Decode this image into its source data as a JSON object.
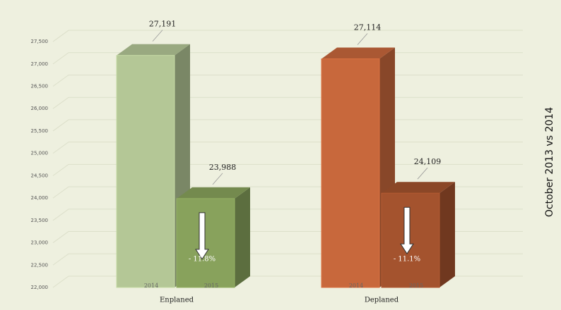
{
  "chart_data": {
    "type": "bar3d",
    "side_title": "October 2013 vs 2014",
    "categories": [
      "Enplaned",
      "Deplaned"
    ],
    "series": [
      {
        "name": "2014",
        "values": [
          27191,
          27114
        ],
        "value_labels": [
          "27,191",
          "27,114"
        ],
        "colors": [
          "#b4c796",
          "#c8683c"
        ]
      },
      {
        "name": "2015",
        "values": [
          23988,
          24109
        ],
        "value_labels": [
          "23,988",
          "24,109"
        ],
        "colors": [
          "#88a25c",
          "#a4532e"
        ],
        "annotations": [
          "- 11.8%",
          "- 11.1%"
        ]
      }
    ],
    "ylim": [
      22000,
      27800
    ],
    "yticks": [
      {
        "value": 22000,
        "label": "22,000"
      },
      {
        "value": 22500,
        "label": "22,500"
      },
      {
        "value": 23000,
        "label": "23,000"
      },
      {
        "value": 23500,
        "label": "23,500"
      },
      {
        "value": 24000,
        "label": "24,000"
      },
      {
        "value": 24500,
        "label": "24,500"
      },
      {
        "value": 25000,
        "label": "25,000"
      },
      {
        "value": 25500,
        "label": "25,500"
      },
      {
        "value": 26000,
        "label": "26,000"
      },
      {
        "value": 26500,
        "label": "26,500"
      },
      {
        "value": 27000,
        "label": "27,000"
      },
      {
        "value": 27500,
        "label": "27,500"
      }
    ],
    "grid": true
  }
}
